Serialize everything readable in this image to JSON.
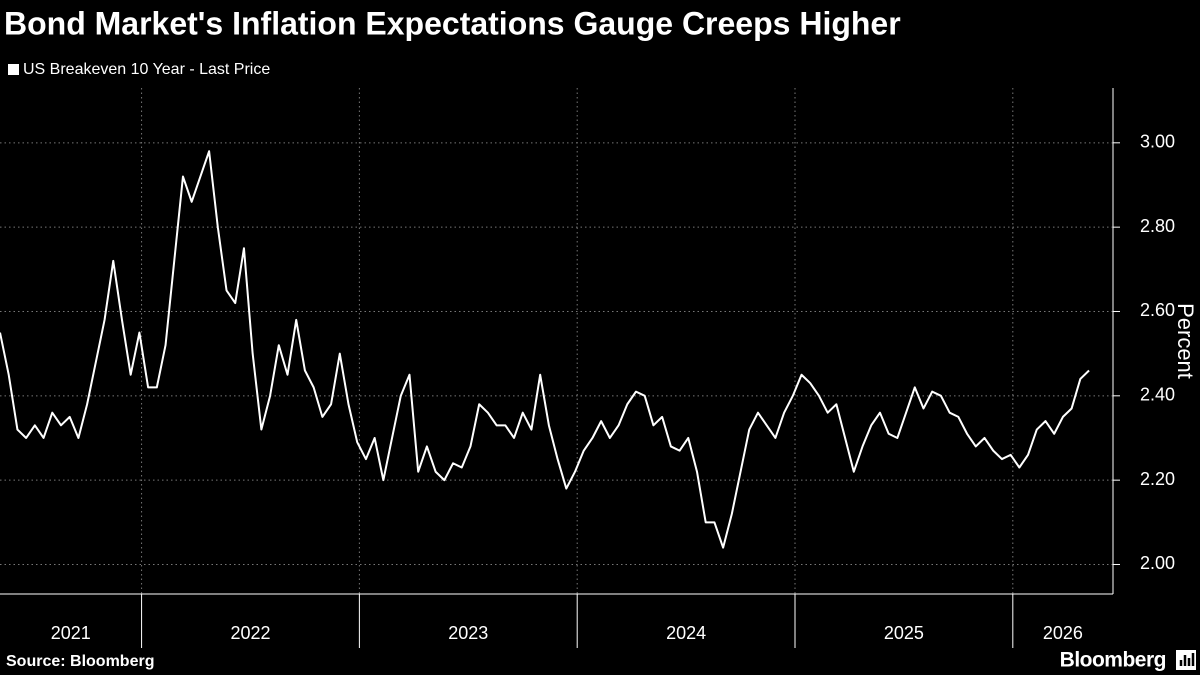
{
  "chart_data": {
    "type": "line",
    "title": "Bond Market's Inflation Expectations Gauge Creeps Higher",
    "y_label": "Percent",
    "source": "Source: Bloomberg",
    "brand": "Bloomberg",
    "grid": true,
    "x": [
      2021.35,
      2021.39,
      2021.43,
      2021.47,
      2021.51,
      2021.55,
      2021.59,
      2021.63,
      2021.67,
      2021.71,
      2021.75,
      2021.79,
      2021.83,
      2021.87,
      2021.91,
      2021.95,
      2021.99,
      2022.03,
      2022.07,
      2022.11,
      2022.15,
      2022.19,
      2022.23,
      2022.27,
      2022.31,
      2022.35,
      2022.39,
      2022.43,
      2022.47,
      2022.51,
      2022.55,
      2022.59,
      2022.63,
      2022.67,
      2022.71,
      2022.75,
      2022.79,
      2022.83,
      2022.87,
      2022.91,
      2022.95,
      2022.99,
      2023.03,
      2023.07,
      2023.11,
      2023.15,
      2023.19,
      2023.23,
      2023.27,
      2023.31,
      2023.35,
      2023.39,
      2023.43,
      2023.47,
      2023.51,
      2023.55,
      2023.59,
      2023.63,
      2023.67,
      2023.71,
      2023.75,
      2023.79,
      2023.83,
      2023.87,
      2023.91,
      2023.95,
      2023.99,
      2024.03,
      2024.07,
      2024.11,
      2024.15,
      2024.19,
      2024.23,
      2024.27,
      2024.31,
      2024.35,
      2024.39,
      2024.43,
      2024.47,
      2024.51,
      2024.55,
      2024.59,
      2024.63,
      2024.67,
      2024.71,
      2024.75,
      2024.79,
      2024.83,
      2024.87,
      2024.91,
      2024.95,
      2024.99,
      2025.03,
      2025.07,
      2025.11,
      2025.15,
      2025.19,
      2025.23,
      2025.27,
      2025.31,
      2025.35,
      2025.39,
      2025.43,
      2025.47,
      2025.51,
      2025.55,
      2025.59,
      2025.63,
      2025.67,
      2025.71,
      2025.75,
      2025.79,
      2025.83,
      2025.87,
      2025.91,
      2025.95,
      2025.99,
      2026.03,
      2026.07,
      2026.11,
      2026.15,
      2026.19,
      2026.23,
      2026.27,
      2026.31,
      2026.35
    ],
    "series": [
      {
        "name": "US Breakeven 10 Year - Last Price",
        "color": "#ffffff",
        "values": [
          2.55,
          2.45,
          2.32,
          2.3,
          2.33,
          2.3,
          2.36,
          2.33,
          2.35,
          2.3,
          2.38,
          2.48,
          2.58,
          2.72,
          2.58,
          2.45,
          2.55,
          2.42,
          2.42,
          2.52,
          2.72,
          2.92,
          2.86,
          2.92,
          2.98,
          2.8,
          2.65,
          2.62,
          2.75,
          2.5,
          2.32,
          2.4,
          2.52,
          2.45,
          2.58,
          2.46,
          2.42,
          2.35,
          2.38,
          2.5,
          2.38,
          2.29,
          2.25,
          2.3,
          2.2,
          2.3,
          2.4,
          2.45,
          2.22,
          2.28,
          2.22,
          2.2,
          2.24,
          2.23,
          2.28,
          2.38,
          2.36,
          2.33,
          2.33,
          2.3,
          2.36,
          2.32,
          2.45,
          2.33,
          2.25,
          2.18,
          2.22,
          2.27,
          2.3,
          2.34,
          2.3,
          2.33,
          2.38,
          2.41,
          2.4,
          2.33,
          2.35,
          2.28,
          2.27,
          2.3,
          2.22,
          2.1,
          2.1,
          2.04,
          2.12,
          2.22,
          2.32,
          2.36,
          2.33,
          2.3,
          2.36,
          2.4,
          2.45,
          2.43,
          2.4,
          2.36,
          2.38,
          2.3,
          2.22,
          2.28,
          2.33,
          2.36,
          2.31,
          2.3,
          2.36,
          2.42,
          2.37,
          2.41,
          2.4,
          2.36,
          2.35,
          2.31,
          2.28,
          2.3,
          2.27,
          2.25,
          2.26,
          2.23,
          2.26,
          2.32,
          2.34,
          2.31,
          2.35,
          2.37,
          2.44,
          2.46
        ]
      }
    ],
    "xlim": [
      2021.35,
      2026.46
    ],
    "xticks": [
      {
        "value": 2021,
        "label": "2021"
      },
      {
        "value": 2022,
        "label": "2022"
      },
      {
        "value": 2023,
        "label": "2023"
      },
      {
        "value": 2024,
        "label": "2024"
      },
      {
        "value": 2025,
        "label": "2025"
      },
      {
        "value": 2026,
        "label": "2026"
      }
    ],
    "ylim": [
      1.93,
      3.13
    ],
    "yticks": [
      {
        "value": 2,
        "label": "2.00"
      },
      {
        "value": 2.2,
        "label": "2.20"
      },
      {
        "value": 2.4,
        "label": "2.40"
      },
      {
        "value": 2.6,
        "label": "2.60"
      },
      {
        "value": 2.8,
        "label": "2.80"
      },
      {
        "value": 3,
        "label": "3.00"
      }
    ]
  }
}
